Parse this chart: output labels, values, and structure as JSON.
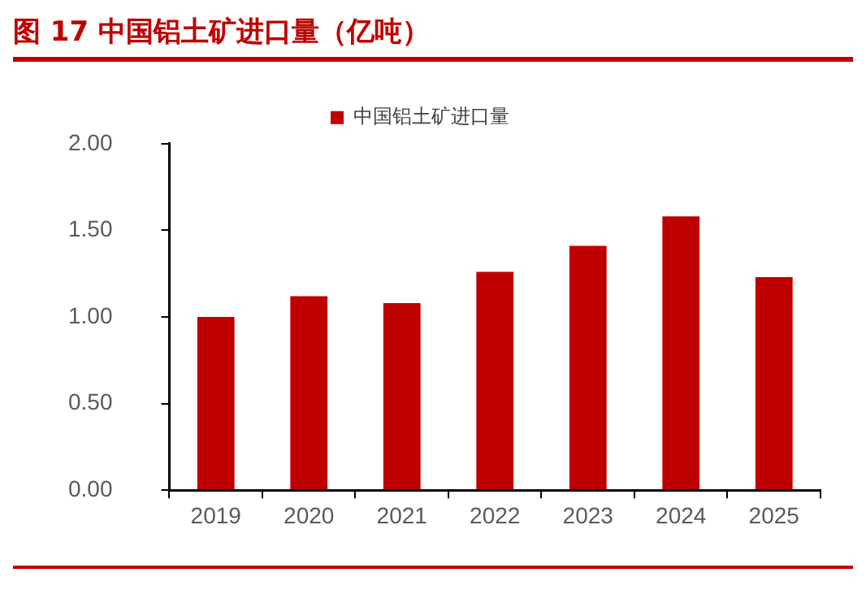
{
  "chart_data": {
    "type": "bar",
    "title": "图 17  中国铝土矿进口量（亿吨）",
    "categories": [
      "2019",
      "2020",
      "2021",
      "2022",
      "2023",
      "2024",
      "2025"
    ],
    "series": [
      {
        "name": "中国铝土矿进口量",
        "color": "#c00000",
        "values": [
          1.0,
          1.12,
          1.08,
          1.26,
          1.41,
          1.58,
          1.23
        ]
      }
    ],
    "ylim": [
      0,
      2
    ],
    "yticks": [
      {
        "value": 0,
        "label": "0.00"
      },
      {
        "value": 0.5,
        "label": "0.50"
      },
      {
        "value": 1,
        "label": "1.00"
      },
      {
        "value": 1.5,
        "label": "1.50"
      },
      {
        "value": 2,
        "label": "2.00"
      }
    ],
    "grid": false,
    "legend": "top"
  }
}
